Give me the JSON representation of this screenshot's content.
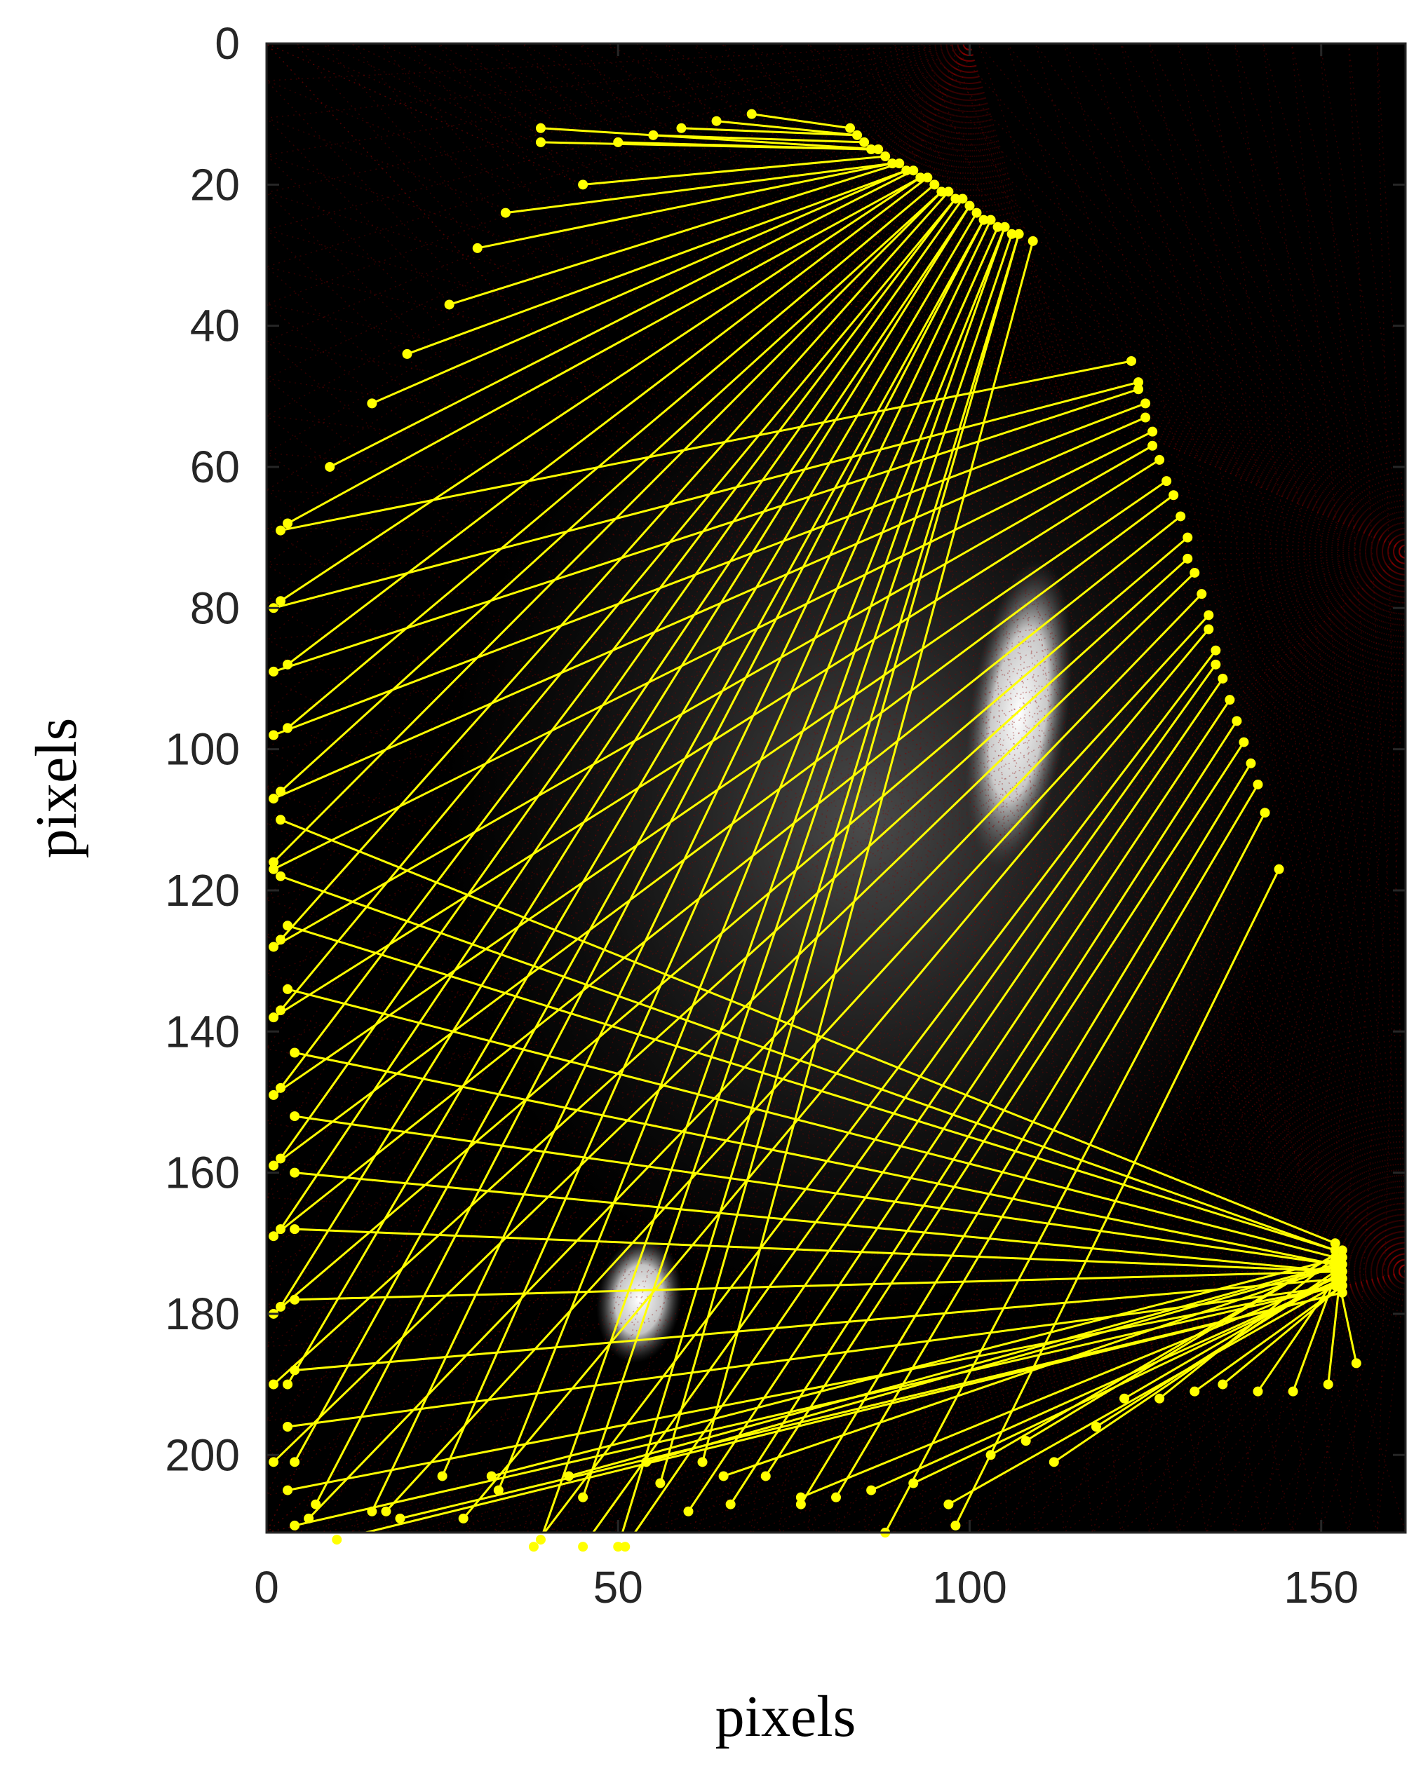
{
  "chart_data": {
    "type": "scatter",
    "title": "",
    "xlabel": "pixels",
    "ylabel": "pixels",
    "xlim": [
      0,
      162
    ],
    "ylim": [
      0,
      211
    ],
    "y_axis_reversed": true,
    "x_ticks": [
      0,
      50,
      100,
      150
    ],
    "y_ticks": [
      0,
      20,
      40,
      60,
      80,
      100,
      120,
      140,
      160,
      180,
      200
    ],
    "grid": false,
    "background_color": "#000000",
    "ray_color": "#ffff00",
    "source_positions": [
      {
        "name": "source-1",
        "x": 100,
        "y": 0
      },
      {
        "name": "source-2",
        "x": 162,
        "y": 72
      },
      {
        "name": "source-3",
        "x": 162,
        "y": 174
      }
    ],
    "series": [
      {
        "source": "source-1",
        "hub": [
          [
            83,
            12
          ],
          [
            84,
            13
          ],
          [
            85,
            14
          ],
          [
            86,
            15
          ],
          [
            87,
            15
          ],
          [
            88,
            16
          ],
          [
            89,
            17
          ],
          [
            90,
            17
          ],
          [
            91,
            18
          ],
          [
            92,
            18
          ],
          [
            93,
            19
          ],
          [
            94,
            19
          ],
          [
            95,
            20
          ],
          [
            96,
            21
          ],
          [
            97,
            21
          ],
          [
            98,
            22
          ],
          [
            99,
            22
          ],
          [
            100,
            23
          ],
          [
            101,
            24
          ],
          [
            102,
            25
          ],
          [
            103,
            25
          ],
          [
            104,
            26
          ],
          [
            105,
            26
          ],
          [
            106,
            27
          ],
          [
            107,
            27
          ],
          [
            109,
            28
          ]
        ],
        "ends": [
          [
            69,
            10
          ],
          [
            64,
            11
          ],
          [
            59,
            12
          ],
          [
            55,
            13
          ],
          [
            50,
            14
          ],
          [
            39,
            14
          ],
          [
            39,
            12
          ],
          [
            45,
            20
          ],
          [
            34,
            24
          ],
          [
            30,
            29
          ],
          [
            26,
            37
          ],
          [
            20,
            44
          ],
          [
            15,
            51
          ],
          [
            9,
            60
          ],
          [
            3,
            68
          ],
          [
            2,
            79
          ],
          [
            3,
            88
          ],
          [
            3,
            97
          ],
          [
            2,
            106
          ],
          [
            1,
            116
          ],
          [
            2,
            127
          ],
          [
            2,
            137
          ],
          [
            2,
            148
          ],
          [
            2,
            158
          ],
          [
            2,
            168
          ],
          [
            2,
            179
          ],
          [
            3,
            190
          ],
          [
            4,
            201
          ],
          [
            7,
            207
          ],
          [
            15,
            208
          ],
          [
            25,
            203
          ],
          [
            33,
            205
          ],
          [
            39,
            212
          ],
          [
            45,
            206
          ],
          [
            50,
            213
          ],
          [
            56,
            204
          ],
          [
            62,
            201
          ]
        ]
      },
      {
        "source": "source-2",
        "hub": [
          [
            123,
            45
          ],
          [
            124,
            48
          ],
          [
            124,
            49
          ],
          [
            125,
            51
          ],
          [
            125,
            53
          ],
          [
            126,
            55
          ],
          [
            126,
            57
          ],
          [
            127,
            59
          ],
          [
            128,
            62
          ],
          [
            129,
            64
          ],
          [
            130,
            67
          ],
          [
            131,
            70
          ],
          [
            131,
            73
          ],
          [
            132,
            75
          ],
          [
            133,
            78
          ],
          [
            134,
            81
          ],
          [
            134,
            83
          ],
          [
            135,
            86
          ],
          [
            135,
            88
          ],
          [
            136,
            90
          ],
          [
            137,
            93
          ],
          [
            138,
            96
          ],
          [
            139,
            99
          ],
          [
            140,
            102
          ],
          [
            141,
            105
          ],
          [
            142,
            109
          ],
          [
            144,
            117
          ]
        ],
        "ends": [
          [
            2,
            69
          ],
          [
            1,
            80
          ],
          [
            1,
            89
          ],
          [
            1,
            98
          ],
          [
            1,
            107
          ],
          [
            1,
            117
          ],
          [
            1,
            128
          ],
          [
            1,
            138
          ],
          [
            1,
            149
          ],
          [
            1,
            159
          ],
          [
            1,
            169
          ],
          [
            1,
            180
          ],
          [
            1,
            190
          ],
          [
            1,
            201
          ],
          [
            6,
            209
          ],
          [
            17,
            208
          ],
          [
            28,
            209
          ],
          [
            38,
            213
          ],
          [
            45,
            213
          ],
          [
            51,
            213
          ],
          [
            60,
            208
          ],
          [
            66,
            207
          ],
          [
            71,
            203
          ],
          [
            76,
            207
          ],
          [
            81,
            206
          ],
          [
            88,
            211
          ],
          [
            98,
            210
          ]
        ]
      },
      {
        "source": "source-3",
        "hub": [
          [
            152,
            170
          ],
          [
            152,
            171
          ],
          [
            152,
            172
          ],
          [
            152,
            173
          ],
          [
            152,
            174
          ],
          [
            153,
            174
          ],
          [
            153,
            175
          ],
          [
            153,
            176
          ],
          [
            153,
            176
          ],
          [
            153,
            177
          ],
          [
            153,
            172
          ],
          [
            152,
            173
          ],
          [
            153,
            173
          ],
          [
            152,
            175
          ],
          [
            153,
            175
          ],
          [
            152,
            176
          ],
          [
            153,
            171
          ],
          [
            152,
            174
          ],
          [
            153,
            174
          ],
          [
            152,
            172
          ],
          [
            153,
            176
          ],
          [
            152,
            175
          ],
          [
            153,
            172
          ],
          [
            152,
            173
          ]
        ],
        "ends": [
          [
            2,
            110
          ],
          [
            2,
            118
          ],
          [
            3,
            125
          ],
          [
            3,
            134
          ],
          [
            4,
            143
          ],
          [
            4,
            152
          ],
          [
            4,
            160
          ],
          [
            4,
            168
          ],
          [
            4,
            178
          ],
          [
            4,
            188
          ],
          [
            3,
            196
          ],
          [
            3,
            205
          ],
          [
            4,
            210
          ],
          [
            10,
            212
          ],
          [
            19,
            209
          ],
          [
            32,
            203
          ],
          [
            43,
            203
          ],
          [
            54,
            201
          ],
          [
            65,
            203
          ],
          [
            76,
            206
          ],
          [
            86,
            205
          ],
          [
            92,
            204
          ],
          [
            97,
            207
          ],
          [
            103,
            200
          ],
          [
            108,
            198
          ],
          [
            112,
            201
          ],
          [
            118,
            196
          ],
          [
            122,
            192
          ],
          [
            127,
            192
          ],
          [
            132,
            191
          ],
          [
            136,
            190
          ],
          [
            141,
            191
          ],
          [
            146,
            191
          ],
          [
            151,
            190
          ],
          [
            155,
            187
          ]
        ]
      }
    ],
    "bright_regions": [
      {
        "cx": 107,
        "cy": 95,
        "rx": 3.5,
        "ry": 22
      },
      {
        "cx": 53,
        "cy": 178,
        "rx": 3,
        "ry": 9
      }
    ]
  }
}
